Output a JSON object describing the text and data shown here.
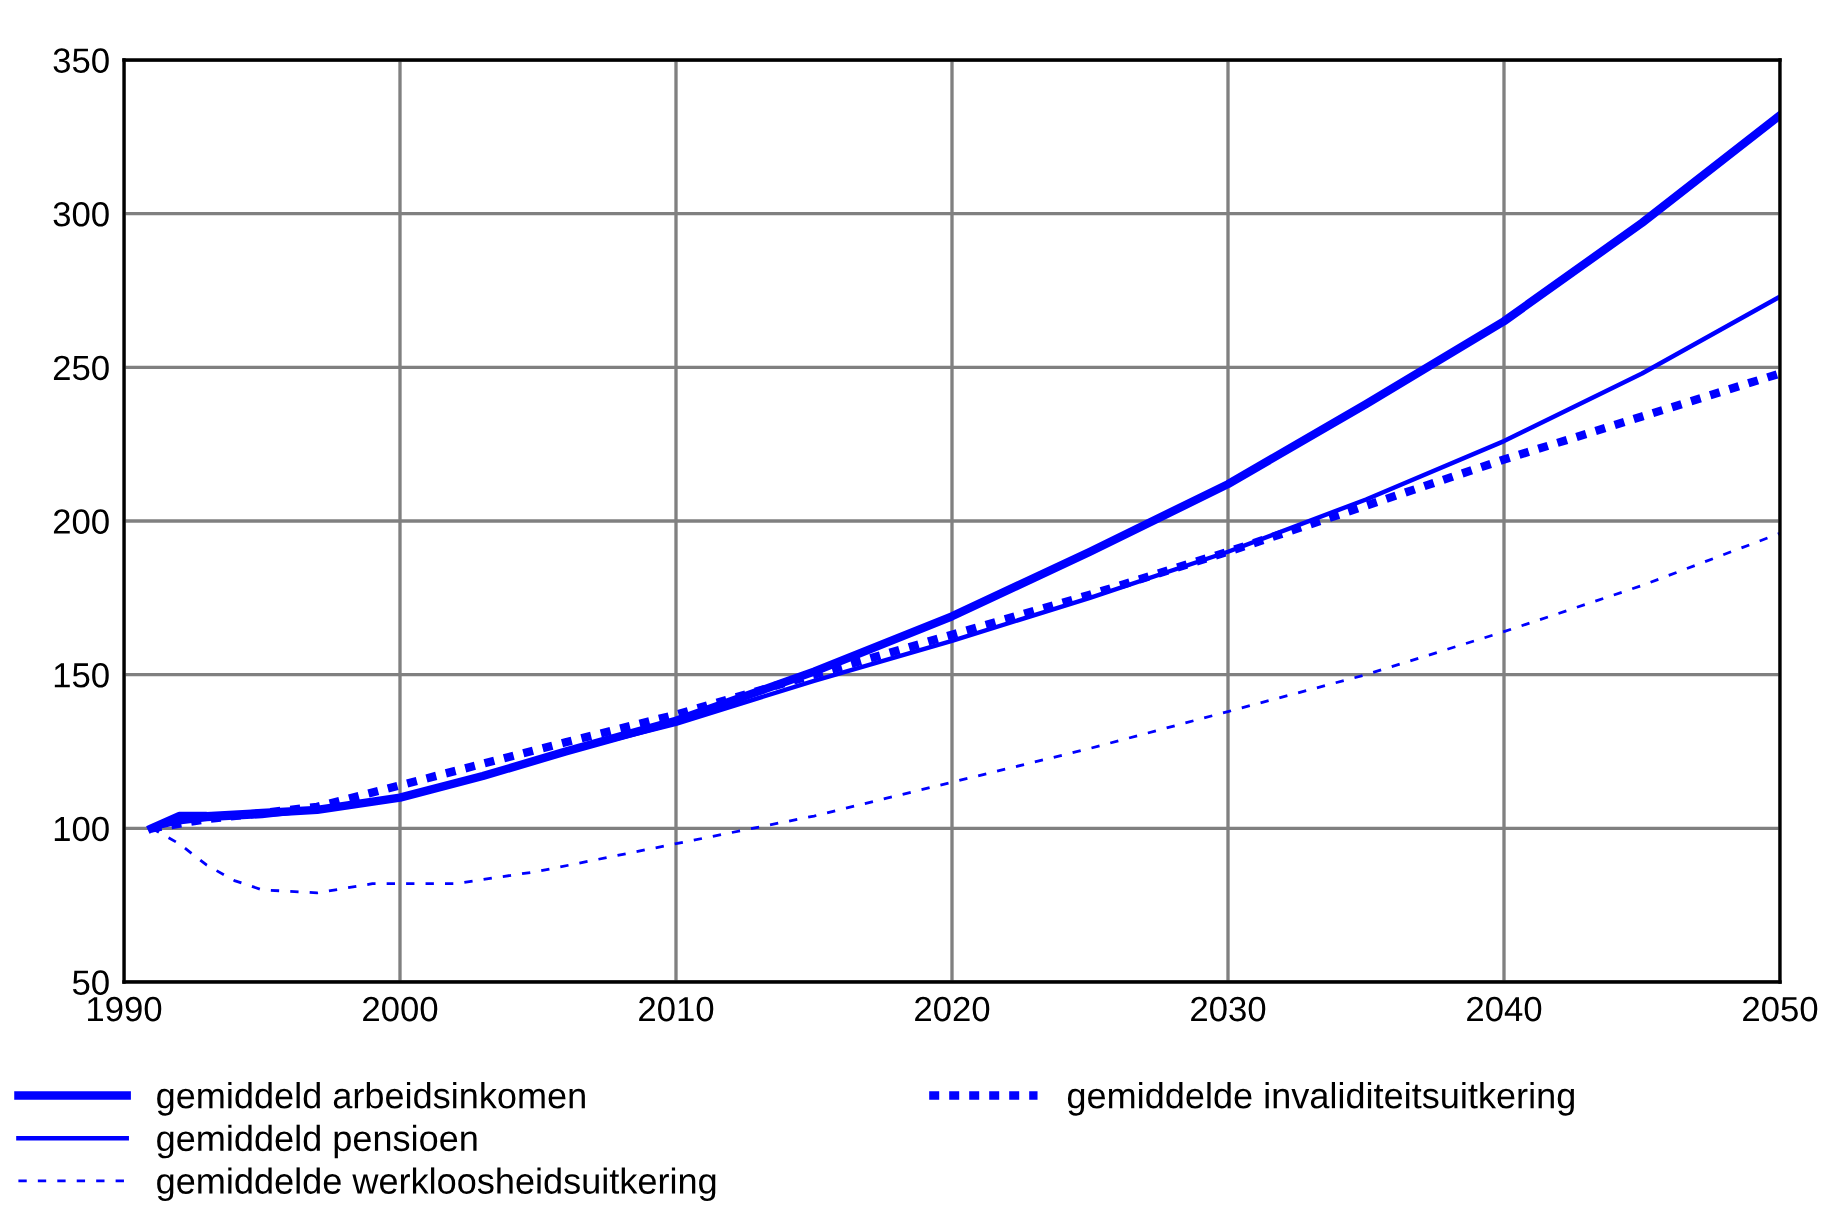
{
  "chart_data": {
    "type": "line",
    "xlim": [
      1990,
      2050
    ],
    "xticks": [
      1990,
      2000,
      2010,
      2020,
      2030,
      2040,
      2050
    ],
    "ylim": [
      50,
      350
    ],
    "yticks": [
      50,
      100,
      150,
      200,
      250,
      300,
      350
    ],
    "grid": true,
    "legend": "bottom",
    "marker": "none",
    "series": [
      {
        "name": "gemiddeld arbeidsinkomen",
        "color": "#0000ff",
        "line_style": "solid",
        "x": [
          1991,
          1992,
          1993,
          1995,
          1997,
          2000,
          2003,
          2006,
          2010,
          2015,
          2020,
          2025,
          2030,
          2035,
          2040,
          2045,
          2050
        ],
        "values": [
          100,
          104,
          104,
          105,
          106,
          110,
          117,
          125,
          135,
          151,
          169,
          190,
          212,
          238,
          265,
          297,
          332
        ]
      },
      {
        "name": "gemiddeld pensioen",
        "color": "#0000ff",
        "line_style": "solid",
        "x": [
          1991,
          1992,
          1993,
          1995,
          1997,
          2000,
          2003,
          2006,
          2010,
          2015,
          2020,
          2025,
          2030,
          2035,
          2040,
          2045,
          2050
        ],
        "values": [
          100,
          102,
          103,
          104,
          106,
          110,
          117,
          125,
          134,
          148,
          161,
          175,
          190,
          207,
          226,
          248,
          273
        ]
      },
      {
        "name": "gemiddelde werkloosheidsuitkering",
        "color": "#0000ff",
        "line_style": "dashed",
        "x": [
          1991,
          1992,
          1993,
          1994,
          1995,
          1997,
          1999,
          2000,
          2002,
          2005,
          2010,
          2015,
          2020,
          2025,
          2030,
          2035,
          2040,
          2045,
          2050
        ],
        "values": [
          100,
          95,
          88,
          83,
          80,
          79,
          82,
          82,
          82,
          86,
          95,
          104,
          115,
          126,
          138,
          150,
          164,
          179,
          196
        ]
      },
      {
        "name": "gemiddelde invaliditeitsuitkering",
        "color": "#0000ff",
        "line_style": "dotted",
        "x": [
          1991,
          1993,
          1995,
          1997,
          2000,
          2003,
          2006,
          2010,
          2015,
          2020,
          2025,
          2030,
          2035,
          2040,
          2045,
          2050
        ],
        "values": [
          100,
          103,
          105,
          107,
          114,
          121,
          128,
          137,
          150,
          163,
          176,
          190,
          205,
          220,
          234,
          248
        ]
      }
    ]
  }
}
